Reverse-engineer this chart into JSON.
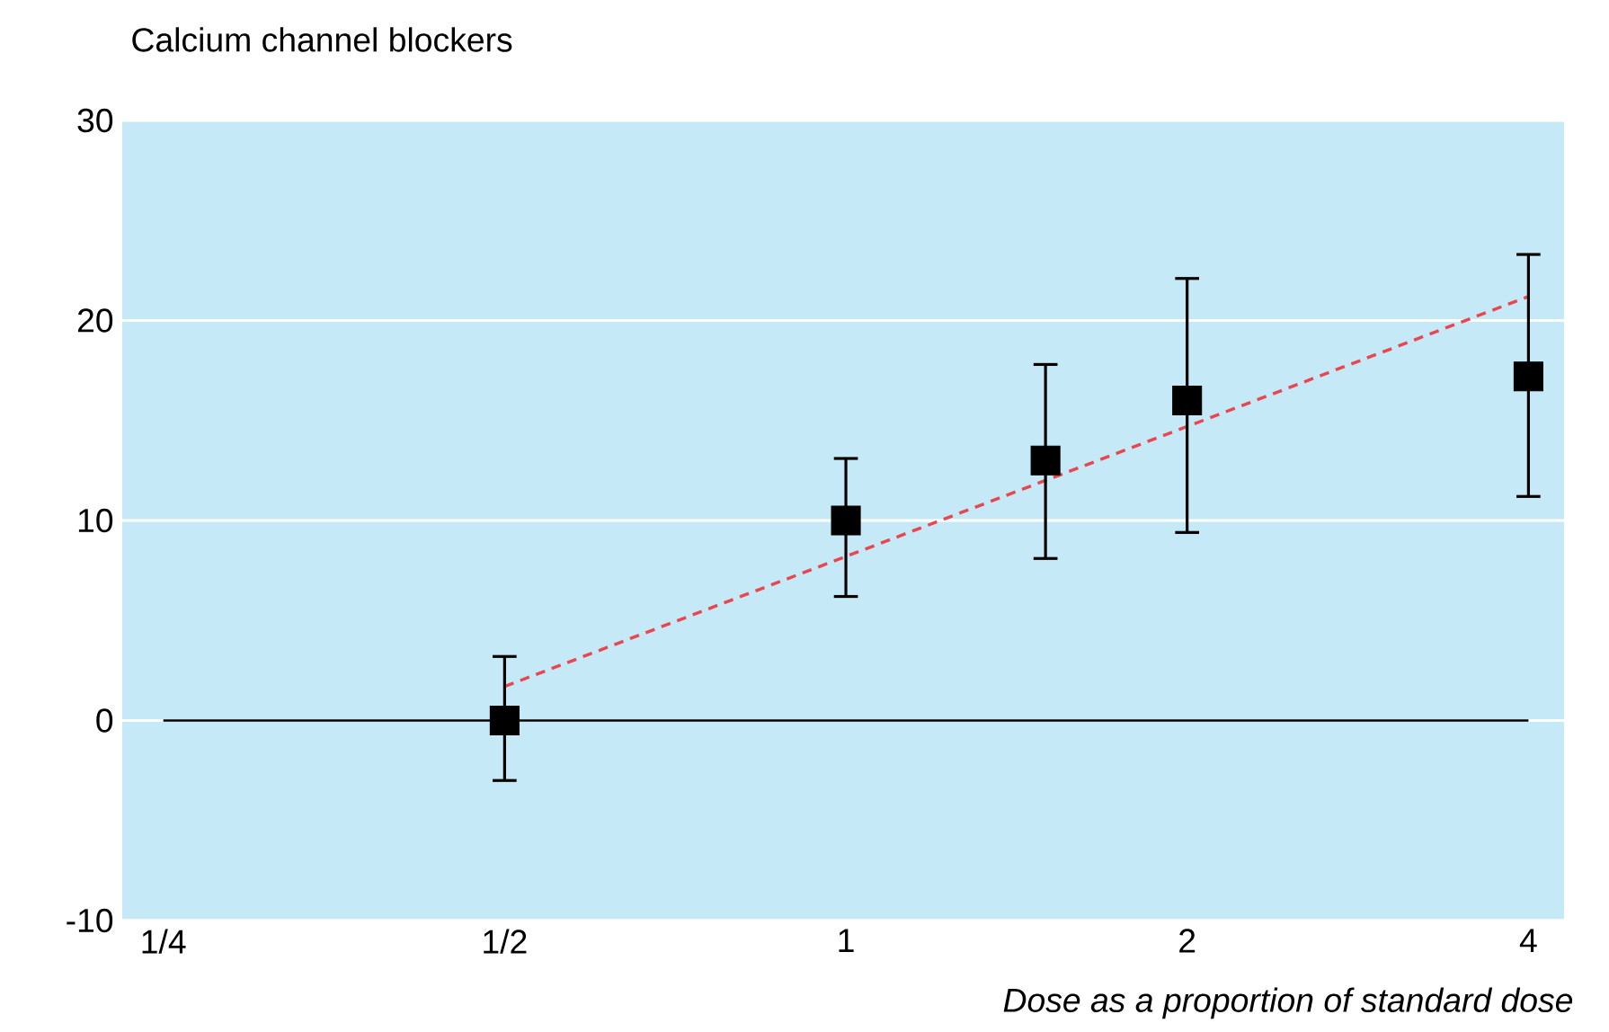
{
  "chart_data": {
    "type": "scatter",
    "title": "Calcium channel blockers",
    "xlabel": "Dose as a proportion of standard dose",
    "log": "x",
    "x": [
      0.5,
      1,
      1.5,
      2,
      4
    ],
    "xlim": [
      0.23,
      4.3
    ],
    "xticks": [
      {
        "value": 0.25,
        "label": "1/4"
      },
      {
        "value": 0.5,
        "label": "1/2"
      },
      {
        "value": 1,
        "label": "1"
      },
      {
        "value": 2,
        "label": "2"
      },
      {
        "value": 4,
        "label": "4"
      }
    ],
    "ylim": [
      -10,
      30
    ],
    "yticks": [
      -10,
      0,
      10,
      20,
      30
    ],
    "grid": "y",
    "marker": "square",
    "series": [
      {
        "color": "#000000",
        "values": [
          0,
          10,
          13,
          16,
          17.2
        ],
        "errors": [
          [
            -3,
            3.2
          ],
          [
            6.2,
            13.1
          ],
          [
            8.1,
            17.8
          ],
          [
            9.4,
            22.1
          ],
          [
            11.2,
            23.3
          ]
        ]
      },
      {
        "type": "line",
        "x": [
          0.5,
          4
        ],
        "values": [
          1.7,
          21.2
        ],
        "color": "#e8474f",
        "line_style": "dashed",
        "marker": "none"
      }
    ],
    "ref_lines": [
      {
        "axis": "y",
        "value": 0,
        "color": "#000000"
      }
    ]
  }
}
